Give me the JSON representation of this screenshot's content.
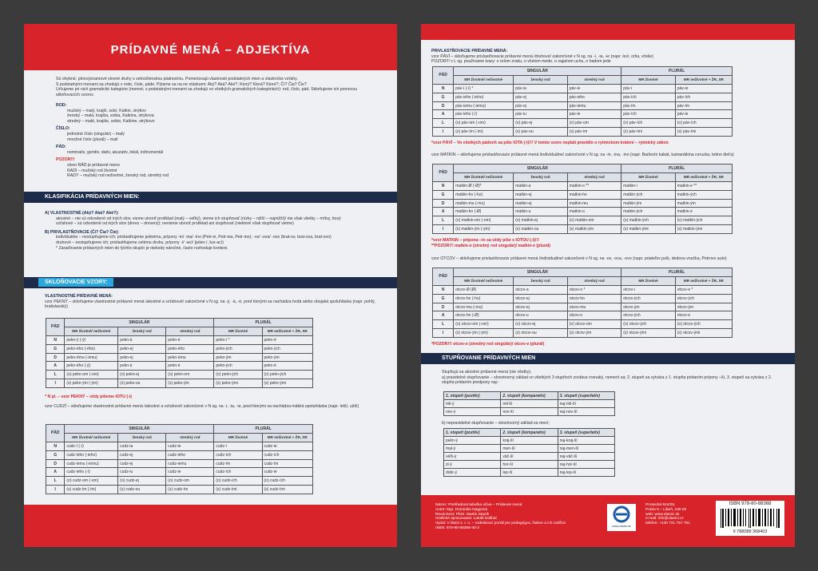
{
  "left": {
    "title": "PRÍDAVNÉ MENÁ – ADJEKTÍVA",
    "intro": [
      "Sú ohybné, plnovýznamové slovné druhy s vetnočlenskou platnosťou. Pomenúvajú vlastnosti podstatných mien a vlastnícke vzťahy.",
      "S podstatnými menami sa zhodujú v rode, čísle, páde. Pýtame sa na ne otázkami: Aký? Aká? Aké?; Ktorý? Ktorá? Ktoré?; Čí? Čia? Čie?",
      "Určujeme pri nich gramatické kategórie (menné; s podstatnými menami sa zhodujú vo všetkých gramatických kategóriách): rod, číslo, pád. Skloňujeme ich pomocou skloňovacích vzorov."
    ],
    "rod": {
      "label": "ROD:",
      "lines": [
        "mužský – malý, krajší, sobí, Katkin, strýkov",
        "ženský – malá, krajšia, sobia, Katkina, strýkova",
        "stredný – malé, krajšie, sobie, Katkine, strýkovo"
      ]
    },
    "cislo": {
      "label": "ČÍSLO:",
      "lines": [
        "jednotné číslo (singulár) – malý",
        "množné číslo (plurál) – malí"
      ]
    },
    "pad": {
      "label": "PÁD:",
      "lines": [
        "nominatív, genitív, datív, akuzatív, lokál, inštrumentál"
      ]
    },
    "pozor": {
      "label": "POZOR!!!",
      "lines": [
        "slovo RÁD je prídavné meno",
        "RADI – mužský rod životné",
        "RADY – mužský rod neživotné, ženský rod, stredný rod"
      ]
    },
    "section1": "KLASIFIKÁCIA PRÍDAVNÝCH MIEN:",
    "klas": [
      "A) VLASTNOSTNÉ (Aký? Aká? Aké?):",
      "akostné – nie sú odvodené od iných slov, vieme utvoriť protiklad (malý – veľký), vieme ich stupňovať (nízky – nižší – najnižší)/ nie však všetky – mŕtvy, bosý",
      "vzťahové – sú odvodené od iných slov (drevo – drevený); nevieme utvoriť protiklad ani stupňovať (niektoré však stupňovať vieme)",
      "B) PRIVLASTŇOVACIE (Čí? Čia? Čie):",
      "individuálne – nestupňujeme ich; privlastňujeme jednému, prípony -in/ -ina/ -ino (Petr-in, Petr-ina, Petr-ino); -ov/ -ova/ -ovo (brat-ov, brat-ova, brat-ovo)",
      "druhové – nestupňujeme ich; privlastňujeme celému druhu, prípony -í/ -ací/ (jelen-í, kur-ací)",
      "* Zaraďovanie prídavných mien do týchto skupín je niekedy náročné, často rozhoduje kontext."
    ],
    "section2": "SKLOŇOVACIE VZORY:",
    "vzory": "VLASTNOSTNÉ PRÍDAVNÉ MENÁ:",
    "vzor1": "vzor PEKNÝ – skloňujeme vlastnostné prídavné mená /akostné a vzťahové/ zakončené v N sg. na -ý, -á, -é, pred ktorými sa nachádza tvrdá alebo obojaká spoluhláska (napr. pohlý, bratislavský)",
    "table1": {
      "head1": [
        "PÁD",
        "SINGULÁR",
        "PLURÁL"
      ],
      "head2": [
        "MR životné/ neživotné",
        "ženský rod",
        "stredný rod",
        "MR životné",
        "MR neživotné + ŽR, SR"
      ],
      "rows": [
        [
          "N",
          "pekn-ý (-ý)",
          "pekn-á",
          "pekn-é",
          "pekn-í *",
          "pekn-é"
        ],
        [
          "G",
          "pekn-ého (-ého)",
          "pekn-ej",
          "pekn-ého",
          "pekn-ých",
          "pekn-ých"
        ],
        [
          "D",
          "pekn-ému (-ému)",
          "pekn-ej",
          "pekn-ému",
          "pekn-ým",
          "pekn-ým"
        ],
        [
          "A",
          "pekn-ého (-ý)",
          "pekn-ú",
          "pekn-é",
          "pekn-ých",
          "pekn-é"
        ],
        [
          "L",
          "(o) pekn-om (-om)",
          "(o) pekn-ej",
          "(o) pekn-om",
          "(o) pekn-ých",
          "(o) pekn-ých"
        ],
        [
          "I",
          "(s) pekn-ým (-ým)",
          "(s) pekn-ou",
          "(s) pekn-ým",
          "(s) pekn-ými",
          "(s) pekn-ými"
        ]
      ]
    },
    "note1": "* N pl. – vzor PEKNÝ – vždy píšeme IOTU (-í)",
    "vzor2": "vzor CUDZÍ – skloňujeme vlastnostné prídavné mená /akostné a vzťahové/ zakončené v N sg. na -í, -ia, -ie, pred ktorými sa nachádza mäkká spoluhláska (napr. letší, užší)",
    "table2": {
      "head1": [
        "PÁD",
        "SINGULÁR",
        "PLURÁL"
      ],
      "head2": [
        "MR životné/ neživotné",
        "ženský rod",
        "stredný rod",
        "MR životné",
        "MR neživotné + ŽR, SR"
      ],
      "rows": [
        [
          "N",
          "cudz-í (-í)",
          "cudz-ia",
          "cudz-ie",
          "cudz-í",
          "cudz-ie"
        ],
        [
          "G",
          "cudz-ieho (-ieho)",
          "cudz-ej",
          "cudz-ieho",
          "cudz-ích",
          "cudz-ích"
        ],
        [
          "D",
          "cudz-iemu (-iemu)",
          "cudz-ej",
          "cudz-iemu",
          "cudz-ím",
          "cudz-ím"
        ],
        [
          "A",
          "cudz-ieho (-í)",
          "cudz-iu",
          "cudz-ie",
          "cudz-ích",
          "cudz-ie"
        ],
        [
          "L",
          "(o) cudz-om (-om)",
          "(o) cudz-ej",
          "(o) cudz-om",
          "(o) cudz-ích",
          "(o) cudz-ích"
        ],
        [
          "I",
          "(s) cudz-ím (-ím)",
          "(s) cudz-ou",
          "(s) cudz-ím",
          "(s) cudz-ími",
          "(s) cudz-ími"
        ]
      ]
    }
  },
  "right": {
    "privl": "PRIVLASTŇOVACIE PRÍDAVNÉ MENÁ:",
    "pavi": [
      "vzor PÁVÍ – skloňujeme privlastňovacie prídavné mená /druhové/ zakončené v N sg. na -í, -ia, -ie (napr. leví, orlia, včelie)",
      "POZOR!!! v L sg. používame tvary: o orlom zraku, o včelom mede, o zajačom uchu, o hadom jede"
    ],
    "table_pavi": {
      "head1": [
        "PÁD",
        "SINGULÁR",
        "PLURÁL"
      ],
      "head2": [
        "MR životné/ neživotné",
        "ženský rod",
        "stredný rod",
        "MR životné",
        "MR neživotné + ŽR, SR"
      ],
      "rows": [
        [
          "N",
          "páv-í (-í) *",
          "páv-ia",
          "páv-ie",
          "páv-í",
          "páv-ie"
        ],
        [
          "G",
          "páv-ieho (-ieho)",
          "páv-ej",
          "páv-ieho",
          "páv-ích",
          "páv-ích"
        ],
        [
          "D",
          "páv-iemu (-iemu)",
          "páv-ej",
          "páv-iemu",
          "páv-ím",
          "páv-ím"
        ],
        [
          "A",
          "páv-ieho (-í)",
          "páv-iu",
          "páv-ie",
          "páv-ích",
          "páv-ie"
        ],
        [
          "L",
          "(o) páv-om (-om)",
          "(o) páv-ej",
          "(o) páv-om",
          "(o) páv-ích",
          "(o) páv-ích"
        ],
        [
          "I",
          "(s) páv-ím (-ím)",
          "(s) páv-ou",
          "(s) páv-ím",
          "(s) páv-ími",
          "(s) páv-ími"
        ]
      ]
    },
    "note_pavi": "*vzor PÁVÍ – Vo všetkých pádoch sa píše IOTA (-í)!!! V tomto vzore neplatí pravidlo o rytmickom krátení – rytmický zákon",
    "matkin": "vzor MATKIN – skloňujeme privlastňovacie prídavné mená /individuálne/ zakončené v N sg. na -in, -ina, -ino (napr. Barborin kabát, kamarátkina ceruzka, tetino dieťa)",
    "table_matkin": {
      "head1": [
        "PÁD",
        "SINGULÁR",
        "PLURÁL"
      ],
      "head2": [
        "MR životné/ neživotné",
        "ženský rod",
        "stredný rod",
        "MR životné",
        "MR neživotné + ŽR, SR"
      ],
      "rows": [
        [
          "N",
          "matkin-Ø (-Ø)*",
          "matkin-a",
          "matkin-o **",
          "matkin-i",
          "matkin-e **"
        ],
        [
          "G",
          "matkin-ho (-ho)",
          "matkin-ej",
          "matkin-ho",
          "matkin-ých",
          "matkin-ých"
        ],
        [
          "D",
          "matkin-mu (-mu)",
          "matkin-ej",
          "matkin-mu",
          "matkin-ým",
          "matkin-ým"
        ],
        [
          "A",
          "matkin-ho (-Ø)",
          "matkin-u",
          "matkin-o",
          "matkin-ých",
          "matkin-e"
        ],
        [
          "L",
          "(o) matkin-om (-om)",
          "(o) matkin-ej",
          "(o) matkin-om",
          "(o) matkin-ých",
          "(o) matkin-ých"
        ],
        [
          "I",
          "(s) matkin-ým (-ým)",
          "(s) matkin-ou",
          "(s) matkin-ým",
          "(s) matkin-ými",
          "(s) matkin-ými"
        ]
      ]
    },
    "notes_matkin": [
      "*vzor MATKIN – prípona –in sa vždy píše s IOTOU (-í)!!!",
      "**POZOR!!! matkin-o (stredný rod singulár)/ matkin-e (plurál)"
    ],
    "otcov": "vzor OTCOV – skloňujeme privlastňovacie prídavné mená /individuálne/ zakončené v N sg. na -ov, -ova, -ovo (napr. priateľov psík, dedova vnučka, Petrovo auto)",
    "table_otcov": {
      "head1": [
        "PÁD",
        "SINGULÁR",
        "PLURÁL"
      ],
      "head2": [
        "MR životné/ neživotné",
        "ženský rod",
        "stredný rod",
        "MR životné",
        "MR neživotné + ŽR, SR"
      ],
      "rows": [
        [
          "N",
          "otcov-Ø (Ø)",
          "otcov-a",
          "otcov-o *",
          "otcov-i",
          "otcov-e *"
        ],
        [
          "G",
          "otcov-ho (-ho)",
          "otcov-ej",
          "otcov-ho",
          "otcov-ých",
          "otcov-ých"
        ],
        [
          "D",
          "otcov-mu (-mu)",
          "otcov-ej",
          "otcov-mu",
          "otcov-ým",
          "otcov-ým"
        ],
        [
          "A",
          "otcov-ho (-Ø)",
          "otcov-u",
          "otcov-o",
          "otcov-ých",
          "otcov-e"
        ],
        [
          "L",
          "(o) otcov-om (-om)",
          "(o) otcov-ej",
          "(o) otcov-om",
          "(o) otcov-ých",
          "(o) otcov-ých"
        ],
        [
          "I",
          "(s) otcov-ým (-ým)",
          "(s) otcov-ou",
          "(s) otcov-ým",
          "(s) otcov-ými",
          "(s) otcov-ými"
        ]
      ]
    },
    "note_otcov": "*POZOR!!! otcov-o (stredný rod singulár)/ otcov-e (plurál)",
    "section3": "STUPŇOVANIE PRÍDAVNÝCH MIEN",
    "stup": [
      "Stupňujú sa akostné prídavné mená (nie všetky).",
      "a) pravidelné stupňovanie – slovotvorný základ vo všetkých 3 stupňoch zostáva rovnaký, nemení sa; 2. stupeň sa vytvára z 1. stupňa pridaním prípony –ší, 3. stupeň sa vytvára z 2. stupňa pridaním predpony naj–"
    ],
    "table_a": {
      "head": [
        "1. stupeň (pozitív)",
        "2. stupeň (komparatív)",
        "3. stupeň (superlatív)"
      ],
      "rows": [
        [
          "mil-ý",
          "mil-ší",
          "naj-mil-ší"
        ],
        [
          "nov-ý",
          "nov-ší",
          "naj-nov-ší"
        ]
      ]
    },
    "b": "b) nepravidelné stupňovanie – slovotvorný základ sa mení;",
    "table_b": {
      "head": [
        "1. stupeň (pozitív)",
        "2. stupeň (komparatív)",
        "3. stupeň (superlatív)"
      ],
      "rows": [
        [
          "pekn-ý",
          "kraj-ší",
          "naj-kraj-ší"
        ],
        [
          "mal-ý",
          "men-ší",
          "naj-men-ší"
        ],
        [
          "veľk-ý",
          "väč-ší",
          "naj-väč-ší"
        ],
        [
          "zl-ý",
          "hor-ší",
          "naj-hor-ší"
        ],
        [
          "dobr-ý",
          "lep-ší",
          "naj-lep-ší"
        ]
      ]
    },
    "footer": [
      "Názov: Prehľadová tabuľka učiva – Prídavné mená",
      "Autor: Mgr. Dominika Nagyová",
      "Recenzent: PhDr. Martin Staník",
      "Grafické spracovanie: Lukáš Dolihal",
      "Vydal: V lánici s. r. o. – vzdelávací portál pre pedagógov, žiakov a ich rodičov",
      "ISBN: 978-80-88368-40-3"
    ],
    "logo": "www.vlanici.sk",
    "contact": [
      "Prosecká 524/26,",
      "Praha 6 – Libeň, 180 00",
      "web: www.vlanici.sk",
      "e-mail: info@vlanici.cz",
      "telefon: +420 721 757 781"
    ],
    "isbn": "ISBN 978-80-88368",
    "barcode": "9 788088 368403"
  }
}
